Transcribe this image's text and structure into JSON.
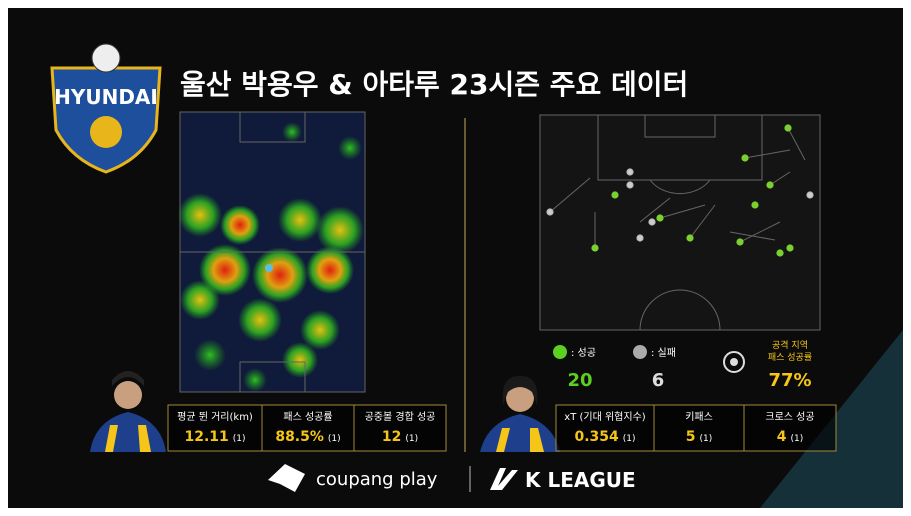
{
  "header": {
    "title": "울산 박용우 & 아타루 23시즌 주요 데이터",
    "logo_text": "HYUNDAI"
  },
  "left_panel": {
    "stats": [
      {
        "label": "평균 뛴 거리(km)",
        "value": "12.11",
        "rank": "(1)"
      },
      {
        "label": "패스 성공률",
        "value": "88.5%",
        "rank": "(1)"
      },
      {
        "label": "공중볼 경합 성공",
        "value": "12",
        "rank": "(1)"
      }
    ]
  },
  "right_panel": {
    "legend": [
      {
        "label": ": 성공",
        "value": "20"
      },
      {
        "label": ": 실패",
        "value": "6"
      }
    ],
    "rate": {
      "label_lines": [
        "공격 지역",
        "패스 성공률"
      ],
      "value": "77%"
    },
    "stats": [
      {
        "label": "xT (기대 위협지수)",
        "value": "0.354",
        "rank": "(1)"
      },
      {
        "label": "키패스",
        "value": "5",
        "rank": "(1)"
      },
      {
        "label": "크로스 성공",
        "value": "4",
        "rank": "(1)"
      }
    ]
  },
  "footer": {
    "partner": "coupang play",
    "league": "K LEAGUE"
  }
}
